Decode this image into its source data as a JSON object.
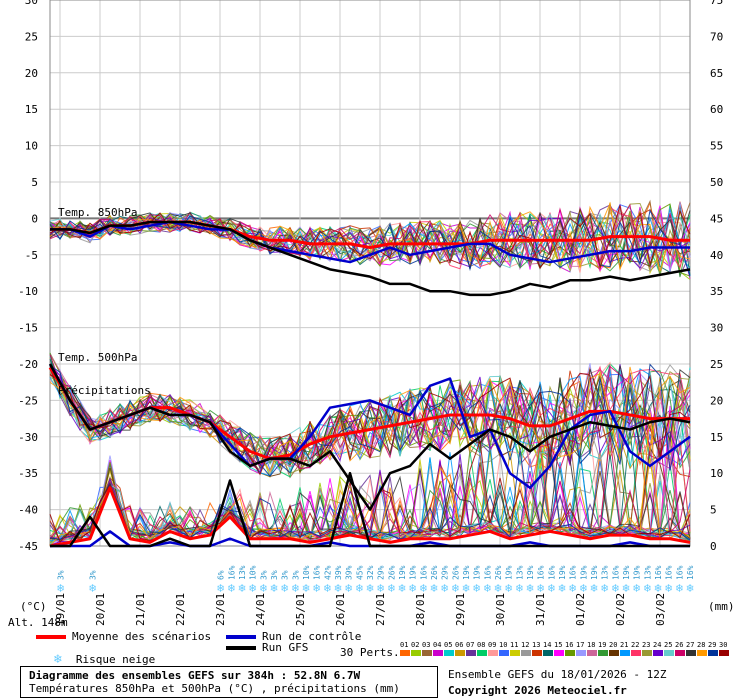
{
  "chart_data": {
    "type": "line",
    "title": "Diagramme des ensembles GEFS sur 384h : 52.8N 6.7W",
    "subtitle": "Températures 850hPa et 500hPa (°C) , précipitations (mm)",
    "left_axis": {
      "label": "(°C)",
      "ticks": [
        30,
        25,
        20,
        15,
        10,
        5,
        0,
        -5,
        -10,
        -15,
        -20,
        -25,
        -30,
        -35,
        -40,
        -45
      ],
      "ylim": [
        -45,
        30
      ]
    },
    "right_axis": {
      "label": "(mm)",
      "ticks": [
        75,
        70,
        65,
        60,
        55,
        50,
        45,
        40,
        35,
        30,
        25,
        20,
        15,
        10,
        5,
        0
      ],
      "ylim": [
        0,
        75
      ]
    },
    "x_ticks": [
      "19/01",
      "20/01",
      "21/01",
      "22/01",
      "23/01",
      "24/01",
      "25/01",
      "26/01",
      "27/01",
      "28/01",
      "29/01",
      "30/01",
      "31/01",
      "01/02",
      "02/02",
      "03/02"
    ],
    "x_range_hours": [
      0,
      384
    ],
    "section_labels": [
      "Temp. 850hPa",
      "Temp. 500hPa",
      "Précipitations"
    ],
    "altitude": "Alt. 148m",
    "snow_risk_pct": [
      "",
      "3%",
      "",
      "",
      "3%",
      "",
      "",
      "",
      "",
      "",
      "",
      "",
      "",
      "",
      "",
      "",
      "6%",
      "16%",
      "13%",
      "10%",
      "3%",
      "3%",
      "3%",
      "3%",
      "10%",
      "16%",
      "42%",
      "39%",
      "39%",
      "45%",
      "32%",
      "29%",
      "26%",
      "19%",
      "19%",
      "16%",
      "26%",
      "29%",
      "26%",
      "19%",
      "19%",
      "16%",
      "26%",
      "19%",
      "13%",
      "19%",
      "16%",
      "16%",
      "19%",
      "16%",
      "19%",
      "19%",
      "13%",
      "16%",
      "19%",
      "19%",
      "13%",
      "16%",
      "16%",
      "16%",
      "16%"
    ],
    "series": [
      {
        "name": "Moyenne des scénarios",
        "group": "t850",
        "color": "#ff0000",
        "x": [
          0,
          12,
          24,
          36,
          48,
          60,
          72,
          84,
          96,
          108,
          120,
          132,
          144,
          156,
          168,
          180,
          192,
          204,
          216,
          228,
          240,
          252,
          264,
          276,
          288,
          300,
          312,
          324,
          336,
          348,
          360,
          372,
          384
        ],
        "values": [
          -1.5,
          -1.5,
          -2,
          -1,
          -1,
          -0.5,
          -0.5,
          -0.5,
          -1,
          -1.5,
          -2.5,
          -3,
          -3,
          -3.5,
          -3.5,
          -3.5,
          -4,
          -3.5,
          -3.5,
          -3.5,
          -3.5,
          -3.5,
          -3,
          -3,
          -3,
          -3,
          -3,
          -3,
          -2.5,
          -2.5,
          -2.5,
          -3,
          -3
        ]
      },
      {
        "name": "Run de contrôle",
        "group": "t850",
        "color": "#0000cc",
        "x": [
          0,
          12,
          24,
          36,
          48,
          60,
          72,
          84,
          96,
          108,
          120,
          132,
          144,
          156,
          168,
          180,
          192,
          204,
          216,
          228,
          240,
          252,
          264,
          276,
          288,
          300,
          312,
          324,
          336,
          348,
          360,
          372,
          384
        ],
        "values": [
          -1.5,
          -1.5,
          -2.5,
          -1,
          -1.5,
          -1,
          -0.5,
          -1,
          -1.5,
          -1.5,
          -3,
          -4,
          -4.5,
          -5,
          -5.5,
          -6,
          -5,
          -4,
          -5,
          -4.5,
          -4,
          -3.5,
          -3.5,
          -5,
          -5.5,
          -6,
          -5.5,
          -5,
          -4.5,
          -4.5,
          -4,
          -4,
          -4
        ]
      },
      {
        "name": "Run GFS",
        "group": "t850",
        "color": "#000000",
        "x": [
          0,
          12,
          24,
          36,
          48,
          60,
          72,
          84,
          96,
          108,
          120,
          132,
          144,
          156,
          168,
          180,
          192,
          204,
          216,
          228,
          240,
          252,
          264,
          276,
          288,
          300,
          312,
          324,
          336,
          348,
          360,
          372,
          384
        ],
        "values": [
          -1.5,
          -1.5,
          -2,
          -1,
          -1,
          -0.5,
          -0.5,
          -0.5,
          -1,
          -1.5,
          -3,
          -4,
          -5,
          -6,
          -7,
          -7.5,
          -8,
          -9,
          -9,
          -10,
          -10,
          -10.5,
          -10.5,
          -10,
          -9,
          -9.5,
          -8.5,
          -8.5,
          -8,
          -8.5,
          -8,
          -7.5,
          -7
        ]
      },
      {
        "name": "Moyenne des scénarios",
        "group": "t500",
        "color": "#ff0000",
        "x": [
          0,
          12,
          24,
          36,
          48,
          60,
          72,
          84,
          96,
          108,
          120,
          132,
          144,
          156,
          168,
          180,
          192,
          204,
          216,
          228,
          240,
          252,
          264,
          276,
          288,
          300,
          312,
          324,
          336,
          348,
          360,
          372,
          384
        ],
        "values": [
          -20.5,
          -25,
          -29,
          -28,
          -27,
          -26,
          -26,
          -27,
          -28,
          -30,
          -32,
          -33,
          -32.5,
          -31,
          -30,
          -29.5,
          -29,
          -28.5,
          -28,
          -27.5,
          -27,
          -27,
          -27,
          -27.5,
          -28.5,
          -28.5,
          -27.5,
          -26.5,
          -26.5,
          -27,
          -27.5,
          -27.5,
          -27.5
        ]
      },
      {
        "name": "Run de contrôle",
        "group": "t500",
        "color": "#0000cc",
        "x": [
          0,
          12,
          24,
          36,
          48,
          60,
          72,
          84,
          96,
          108,
          120,
          132,
          144,
          156,
          168,
          180,
          192,
          204,
          216,
          228,
          240,
          252,
          264,
          276,
          288,
          300,
          312,
          324,
          336,
          348,
          360,
          372,
          384
        ],
        "values": [
          -20,
          -25,
          -29,
          -28,
          -27,
          -26,
          -27,
          -27,
          -28,
          -31,
          -34,
          -33,
          -33,
          -30,
          -26,
          -25.5,
          -25,
          -26,
          -27,
          -23,
          -22,
          -30,
          -29,
          -35,
          -37,
          -34,
          -29,
          -27,
          -26.5,
          -32,
          -34,
          -32,
          -30
        ]
      },
      {
        "name": "Run GFS",
        "group": "t500",
        "color": "#000000",
        "x": [
          0,
          12,
          24,
          36,
          48,
          60,
          72,
          84,
          96,
          108,
          120,
          132,
          144,
          156,
          168,
          180,
          192,
          204,
          216,
          228,
          240,
          252,
          264,
          276,
          288,
          300,
          312,
          324,
          336,
          348,
          360,
          372,
          384
        ],
        "values": [
          -20,
          -25,
          -29,
          -28,
          -27,
          -26,
          -27,
          -27,
          -28,
          -32,
          -34,
          -33,
          -33,
          -34,
          -32,
          -36,
          -40,
          -35,
          -34,
          -31,
          -33,
          -31,
          -29,
          -30,
          -32,
          -30,
          -29,
          -28,
          -28.5,
          -29,
          -28,
          -27.5,
          -28
        ]
      },
      {
        "name": "Moyenne des scénarios",
        "group": "precip",
        "color": "#ff0000",
        "x": [
          0,
          12,
          24,
          36,
          48,
          60,
          72,
          84,
          96,
          108,
          120,
          132,
          144,
          156,
          168,
          180,
          192,
          204,
          216,
          228,
          240,
          252,
          264,
          276,
          288,
          300,
          312,
          324,
          336,
          348,
          360,
          372,
          384
        ],
        "values": [
          0,
          0.5,
          1,
          8,
          1,
          0.5,
          2,
          1,
          1.5,
          4,
          1,
          1,
          1,
          0.5,
          1,
          1.5,
          1,
          0.5,
          1,
          1,
          1,
          1.5,
          2,
          1,
          1.5,
          2,
          1.5,
          1,
          1.5,
          1.5,
          1,
          1,
          0.5
        ]
      },
      {
        "name": "Run de contrôle",
        "group": "precip",
        "color": "#0000cc",
        "x": [
          0,
          12,
          24,
          36,
          48,
          60,
          72,
          84,
          96,
          108,
          120,
          132,
          144,
          156,
          168,
          180,
          192,
          204,
          216,
          228,
          240,
          252,
          264,
          276,
          288,
          300,
          312,
          324,
          336,
          348,
          360,
          372,
          384
        ],
        "values": [
          0,
          0,
          0,
          2,
          0,
          0,
          0.5,
          0,
          0,
          1,
          0,
          0,
          0,
          0,
          0.5,
          0,
          0,
          0,
          0,
          0.5,
          0,
          0,
          0,
          0,
          0.5,
          0,
          0,
          0,
          0,
          0.5,
          0,
          0,
          0
        ]
      },
      {
        "name": "Run GFS",
        "group": "precip",
        "color": "#000000",
        "x": [
          0,
          12,
          24,
          36,
          48,
          60,
          72,
          84,
          96,
          108,
          120,
          132,
          144,
          156,
          168,
          180,
          192,
          204,
          216,
          228,
          240,
          252,
          264,
          276,
          288,
          300,
          312,
          324,
          336,
          348,
          360,
          372,
          384
        ],
        "values": [
          0,
          0,
          4,
          0,
          0,
          0,
          1,
          0,
          0,
          9,
          0,
          0,
          0,
          0,
          0,
          10,
          0,
          0,
          0,
          0,
          0,
          0,
          0,
          0,
          0,
          0,
          0,
          0,
          0,
          0,
          0,
          0,
          0
        ]
      }
    ]
  },
  "legend": {
    "mean": "Moyenne des scénarios",
    "control": "Run de contrôle",
    "gfs": "Run GFS",
    "snow": "Risque neige",
    "perts": "30 Perts.",
    "pert_numbers": [
      "01",
      "02",
      "03",
      "04",
      "05",
      "06",
      "07",
      "08",
      "09",
      "10",
      "11",
      "12",
      "13",
      "14",
      "15",
      "16",
      "17",
      "18",
      "19",
      "20",
      "21",
      "22",
      "23",
      "24",
      "25",
      "26",
      "27",
      "28",
      "29",
      "30"
    ],
    "pert_colors": [
      "#ff6600",
      "#99cc00",
      "#996633",
      "#cc00cc",
      "#00cccc",
      "#cc9900",
      "#663399",
      "#00cc66",
      "#ff9999",
      "#3366ff",
      "#cccc00",
      "#999999",
      "#cc3300",
      "#006666",
      "#ff00ff",
      "#669900",
      "#9999ff",
      "#cc6699",
      "#339933",
      "#663300",
      "#0099ff",
      "#ff3366",
      "#999933",
      "#6600cc",
      "#66cccc",
      "#cc0066",
      "#333333",
      "#ff9900",
      "#003399",
      "#990000"
    ],
    "mean_color": "#ff0000",
    "control_color": "#0000cc",
    "gfs_color": "#000000",
    "snow_color": "#66ccff"
  },
  "footer": {
    "title": "Diagramme des ensembles GEFS sur 384h : 52.8N 6.7W",
    "subtitle": "Températures 850hPa et 500hPa (°C) , précipitations (mm)",
    "ensemble": "Ensemble GEFS du 18/01/2026 - 12Z",
    "copyright": "Copyright 2026 Meteociel.fr"
  }
}
